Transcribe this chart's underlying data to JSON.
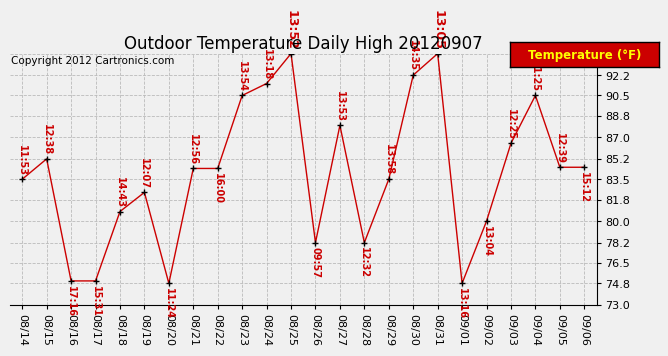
{
  "title": "Outdoor Temperature Daily High 20120907",
  "copyright": "Copyright 2012 Cartronics.com",
  "legend_label": "Temperature (°F)",
  "dates": [
    "08/14",
    "08/15",
    "08/16",
    "08/17",
    "08/18",
    "08/19",
    "08/20",
    "08/21",
    "08/22",
    "08/23",
    "08/24",
    "08/25",
    "08/26",
    "08/27",
    "08/28",
    "08/29",
    "08/30",
    "08/31",
    "09/01",
    "09/02",
    "09/03",
    "09/04",
    "09/05",
    "09/06"
  ],
  "temperatures": [
    83.5,
    85.2,
    75.0,
    75.0,
    80.8,
    82.4,
    74.8,
    84.4,
    84.4,
    90.5,
    91.5,
    94.0,
    78.2,
    88.0,
    78.2,
    83.5,
    92.2,
    94.0,
    74.8,
    80.0,
    86.5,
    90.5,
    84.5,
    84.5
  ],
  "time_labels": [
    "11:53",
    "12:38",
    "17:16",
    "15:31",
    "14:43",
    "12:07",
    "11:24",
    "12:56",
    "16:00",
    "13:54",
    "13:18",
    "13:52",
    "09:57",
    "13:53",
    "12:32",
    "13:58",
    "14:35",
    "13:05",
    "13:16",
    "13:04",
    "12:25",
    "11:25",
    "12:39",
    "15:12"
  ],
  "label_above": [
    true,
    true,
    false,
    false,
    true,
    true,
    false,
    true,
    false,
    true,
    true,
    true,
    false,
    true,
    false,
    true,
    true,
    true,
    false,
    false,
    true,
    true,
    true,
    false
  ],
  "ylim": [
    73.0,
    94.0
  ],
  "ytick_values": [
    73.0,
    74.8,
    76.5,
    78.2,
    80.0,
    81.8,
    83.5,
    85.2,
    87.0,
    88.8,
    90.5,
    92.2,
    94.0
  ],
  "line_color": "#cc0000",
  "marker_color": "#000000",
  "label_color": "#cc0000",
  "grid_color": "#bbbbbb",
  "bg_color": "#f0f0f0",
  "legend_bg": "#cc0000",
  "legend_text_color": "#ffff00",
  "title_color": "#000000",
  "copyright_color": "#000000",
  "title_fontsize": 12,
  "copyright_fontsize": 7.5,
  "label_fontsize": 7,
  "tick_fontsize": 8
}
